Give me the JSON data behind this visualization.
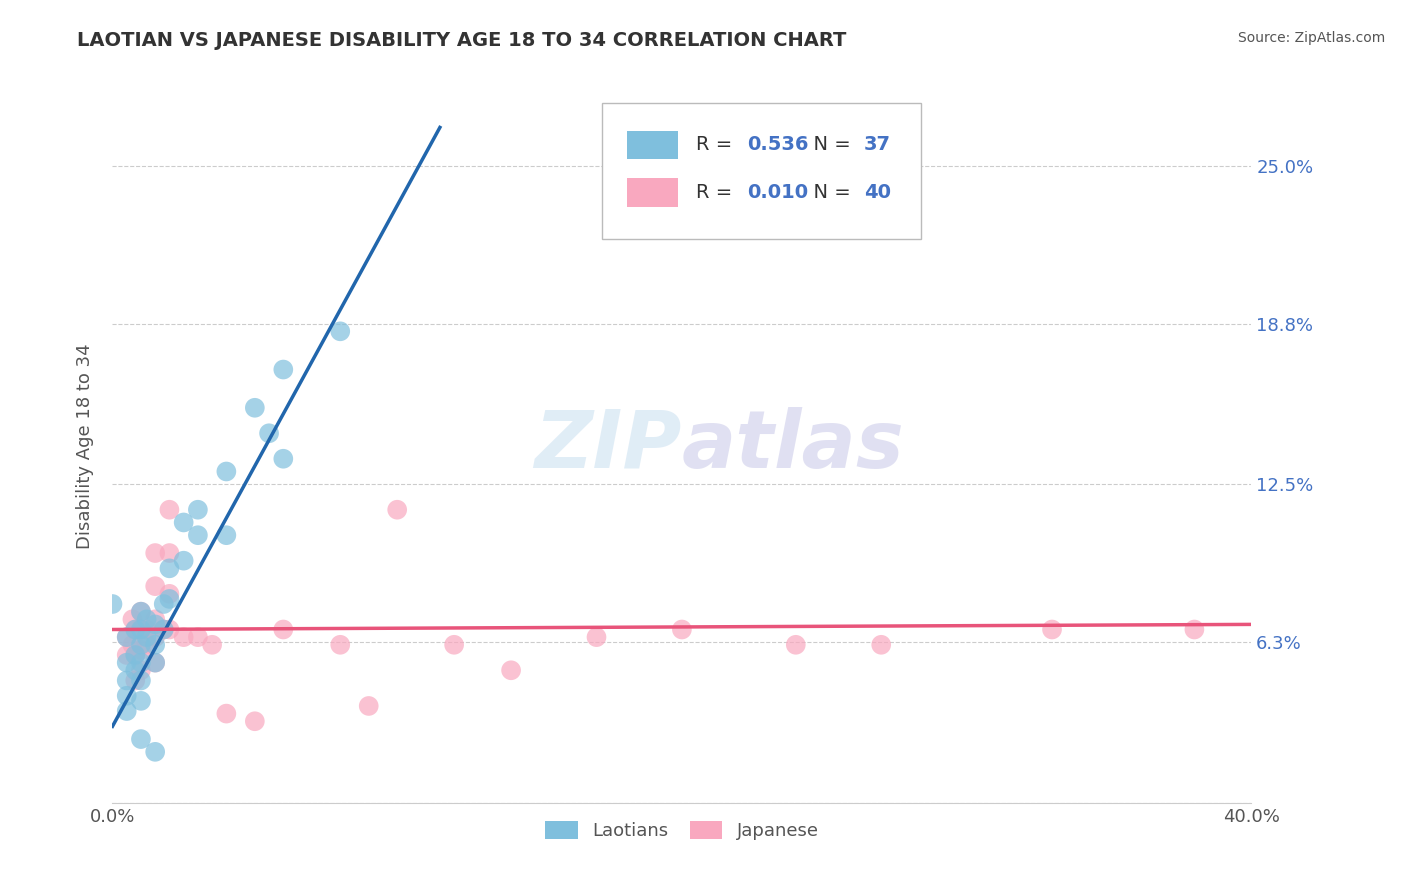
{
  "title": "LAOTIAN VS JAPANESE DISABILITY AGE 18 TO 34 CORRELATION CHART",
  "source": "Source: ZipAtlas.com",
  "ylabel": "Disability Age 18 to 34",
  "xlim": [
    0.0,
    0.4
  ],
  "ylim": [
    -0.02,
    0.28
  ],
  "plot_ylim": [
    0.0,
    0.28
  ],
  "xticks": [
    0.0,
    0.1,
    0.2,
    0.3,
    0.4
  ],
  "yticks": [
    0.0,
    0.063,
    0.125,
    0.188,
    0.25
  ],
  "laotian_R": "0.536",
  "laotian_N": "37",
  "japanese_R": "0.010",
  "japanese_N": "40",
  "laotian_color": "#7fbfdd",
  "japanese_color": "#f9a8bf",
  "laotian_line_color": "#2166ac",
  "japanese_line_color": "#e8547a",
  "legend_text_color": "#333333",
  "legend_value_color": "#4472c4",
  "laotian_points": [
    [
      0.0,
      0.078
    ],
    [
      0.005,
      0.065
    ],
    [
      0.005,
      0.055
    ],
    [
      0.005,
      0.048
    ],
    [
      0.005,
      0.042
    ],
    [
      0.005,
      0.036
    ],
    [
      0.008,
      0.068
    ],
    [
      0.008,
      0.058
    ],
    [
      0.008,
      0.052
    ],
    [
      0.01,
      0.075
    ],
    [
      0.01,
      0.068
    ],
    [
      0.01,
      0.062
    ],
    [
      0.01,
      0.055
    ],
    [
      0.01,
      0.048
    ],
    [
      0.01,
      0.04
    ],
    [
      0.012,
      0.072
    ],
    [
      0.012,
      0.065
    ],
    [
      0.015,
      0.07
    ],
    [
      0.015,
      0.062
    ],
    [
      0.015,
      0.055
    ],
    [
      0.018,
      0.078
    ],
    [
      0.018,
      0.068
    ],
    [
      0.02,
      0.092
    ],
    [
      0.02,
      0.08
    ],
    [
      0.025,
      0.11
    ],
    [
      0.025,
      0.095
    ],
    [
      0.03,
      0.115
    ],
    [
      0.03,
      0.105
    ],
    [
      0.04,
      0.13
    ],
    [
      0.04,
      0.105
    ],
    [
      0.05,
      0.155
    ],
    [
      0.055,
      0.145
    ],
    [
      0.06,
      0.17
    ],
    [
      0.06,
      0.135
    ],
    [
      0.08,
      0.185
    ],
    [
      0.01,
      0.025
    ],
    [
      0.015,
      0.02
    ]
  ],
  "japanese_points": [
    [
      0.005,
      0.065
    ],
    [
      0.005,
      0.058
    ],
    [
      0.007,
      0.072
    ],
    [
      0.007,
      0.062
    ],
    [
      0.008,
      0.068
    ],
    [
      0.008,
      0.058
    ],
    [
      0.008,
      0.048
    ],
    [
      0.01,
      0.075
    ],
    [
      0.01,
      0.068
    ],
    [
      0.01,
      0.06
    ],
    [
      0.01,
      0.052
    ],
    [
      0.012,
      0.068
    ],
    [
      0.012,
      0.062
    ],
    [
      0.015,
      0.098
    ],
    [
      0.015,
      0.085
    ],
    [
      0.015,
      0.072
    ],
    [
      0.015,
      0.065
    ],
    [
      0.015,
      0.055
    ],
    [
      0.018,
      0.068
    ],
    [
      0.02,
      0.115
    ],
    [
      0.02,
      0.098
    ],
    [
      0.02,
      0.082
    ],
    [
      0.02,
      0.068
    ],
    [
      0.025,
      0.065
    ],
    [
      0.03,
      0.065
    ],
    [
      0.035,
      0.062
    ],
    [
      0.04,
      0.035
    ],
    [
      0.05,
      0.032
    ],
    [
      0.06,
      0.068
    ],
    [
      0.08,
      0.062
    ],
    [
      0.09,
      0.038
    ],
    [
      0.1,
      0.115
    ],
    [
      0.12,
      0.062
    ],
    [
      0.14,
      0.052
    ],
    [
      0.17,
      0.065
    ],
    [
      0.2,
      0.068
    ],
    [
      0.24,
      0.062
    ],
    [
      0.27,
      0.062
    ],
    [
      0.33,
      0.068
    ],
    [
      0.38,
      0.068
    ]
  ],
  "lao_line_x": [
    0.0,
    0.115
  ],
  "lao_line_y_start": 0.03,
  "lao_line_y_end": 0.265,
  "jap_line_y": 0.068
}
